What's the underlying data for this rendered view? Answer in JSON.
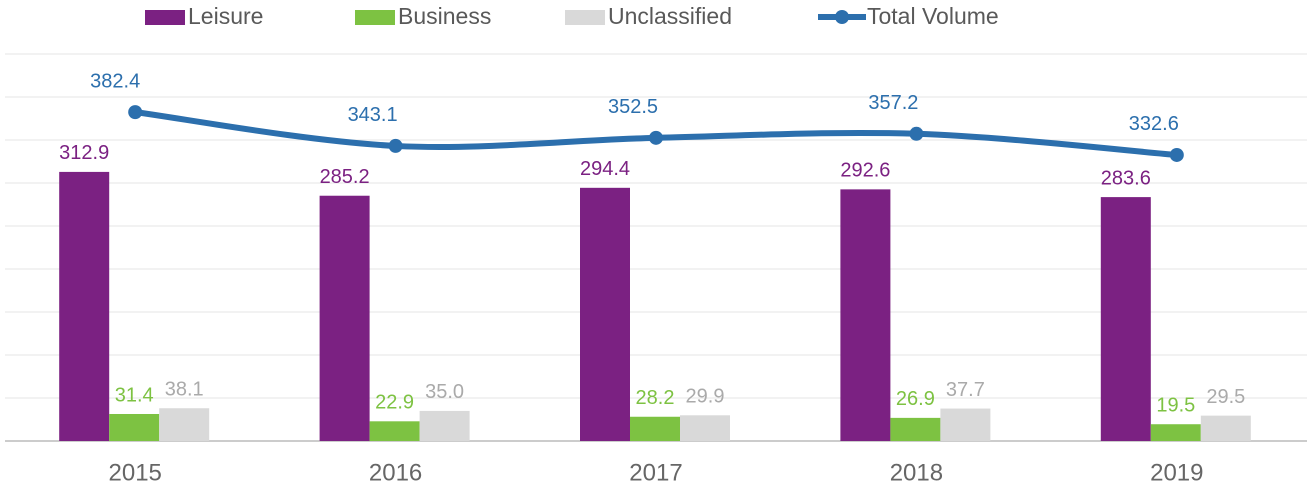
{
  "chart_data": {
    "type": "bar",
    "categories": [
      "2015",
      "2016",
      "2017",
      "2018",
      "2019"
    ],
    "series": [
      {
        "name": "Leisure",
        "color": "#7b2182",
        "values": [
          312.9,
          285.2,
          294.4,
          292.6,
          283.6
        ],
        "value_labels": [
          "312.9",
          "285.2",
          "294.4",
          "292.6",
          "283.6"
        ]
      },
      {
        "name": "Business",
        "color": "#7dc242",
        "values": [
          31.4,
          22.9,
          28.2,
          26.9,
          19.5
        ],
        "value_labels": [
          "31.4",
          "22.9",
          "28.2",
          "26.9",
          "19.5"
        ]
      },
      {
        "name": "Unclassified",
        "color": "#d9d9d9",
        "values": [
          38.1,
          35.0,
          29.9,
          37.7,
          29.5
        ],
        "value_labels": [
          "38.1",
          "35.0",
          "29.9",
          "37.7",
          "29.5"
        ]
      },
      {
        "name": "Total Volume",
        "type": "line",
        "color": "#2c6fad",
        "values": [
          382.4,
          343.1,
          352.5,
          357.2,
          332.6
        ],
        "value_labels": [
          "382.4",
          "343.1",
          "352.5",
          "357.2",
          "332.6"
        ]
      }
    ],
    "ylim": [
      0,
      450
    ],
    "yticks": [
      0,
      50,
      100,
      150,
      200,
      250,
      300,
      350,
      400,
      450
    ],
    "grid": true,
    "legend": "top"
  }
}
